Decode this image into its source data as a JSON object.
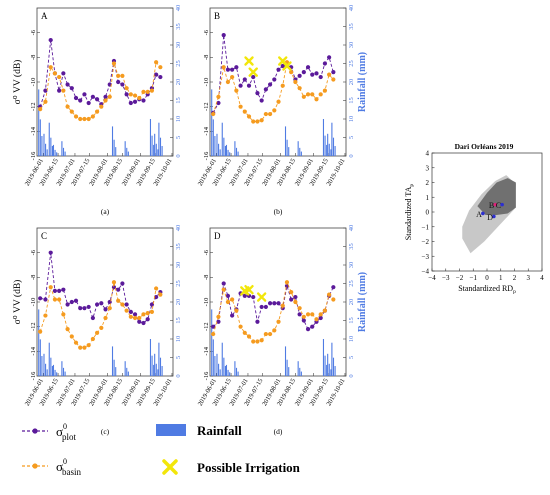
{
  "x_ticks": [
    "2019-06-01",
    "2019-06-15",
    "2019-07-01",
    "2019-07-15",
    "2019-08-01",
    "2019-08-15",
    "2019-09-01",
    "2019-09-15",
    "2019-10-01"
  ],
  "y_left_ticks": [
    "-16",
    "-14",
    "-12",
    "-10",
    "-8",
    "-6"
  ],
  "y_right_ticks": [
    "0",
    "5",
    "10",
    "15",
    "20",
    "25",
    "30",
    "35",
    "40"
  ],
  "y_left_label": "σ⁰ VV (dB)",
  "y_right_label": "Rainfall (mm)",
  "colors": {
    "plot": "#5b1a9a",
    "basin": "#f59b1f",
    "rain": "#4f7be3",
    "irrigation": "#f2e60a",
    "axis_right": "#4f7be3"
  },
  "legend": {
    "plot_label": "σ",
    "plot_sup": "0",
    "plot_sub": "plot",
    "basin_label": "σ",
    "basin_sup": "0",
    "basin_sub": "basin",
    "rain_label": "Rainfall",
    "irrig_label": "Possible Irrigation"
  },
  "chart_data": [
    {
      "type": "line",
      "panel": "A",
      "caption": "(a)",
      "x": [
        "2019-05-29",
        "2019-06-03",
        "2019-06-08",
        "2019-06-12",
        "2019-06-16",
        "2019-06-20",
        "2019-06-24",
        "2019-06-28",
        "2019-07-02",
        "2019-07-06",
        "2019-07-10",
        "2019-07-14",
        "2019-07-18",
        "2019-07-22",
        "2019-07-26",
        "2019-07-30",
        "2019-08-03",
        "2019-08-07",
        "2019-08-11",
        "2019-08-15",
        "2019-08-19",
        "2019-08-23",
        "2019-08-27",
        "2019-08-31",
        "2019-09-04",
        "2019-09-08",
        "2019-09-12",
        "2019-09-16",
        "2019-09-20"
      ],
      "series": [
        {
          "name": "plot",
          "values": [
            -12.0,
            -10.7,
            -6.6,
            -9.3,
            -10.7,
            -9.3,
            -10.2,
            -10.5,
            -11.3,
            -11.5,
            -11.0,
            -11.7,
            -11.2,
            -11.4,
            -11.8,
            -11.2,
            -10.2,
            -8.3,
            -10.0,
            -10.2,
            -11.0,
            -11.7,
            -11.6,
            -11.4,
            -11.5,
            -11.0,
            -10.5,
            -9.4,
            -9.6
          ]
        },
        {
          "name": "basin",
          "values": [
            -12.2,
            -11.6,
            -8.8,
            -9.3,
            -9.6,
            -10.7,
            -12.0,
            -12.4,
            -12.8,
            -13.0,
            -13.0,
            -13.0,
            -12.8,
            -12.4,
            -12.0,
            -11.5,
            -11.2,
            -8.5,
            -9.5,
            -9.5,
            -10.5,
            -11.0,
            -11.1,
            -11.3,
            -10.8,
            -10.8,
            -10.7,
            -8.4,
            -8.8
          ]
        },
        {
          "name": "rainfall",
          "values": [
            18,
            6,
            9,
            3,
            0,
            4,
            0,
            0,
            0,
            0,
            0,
            0,
            0,
            0,
            0,
            0,
            0,
            8,
            0,
            0,
            4,
            0,
            0,
            0,
            0,
            0,
            10,
            6,
            9
          ]
        }
      ],
      "irrigation_x": [],
      "irrigation_y": [],
      "ylim_left": [
        -16,
        -4
      ],
      "ylim_right": [
        0,
        40
      ]
    },
    {
      "type": "line",
      "panel": "B",
      "caption": "(b)",
      "x": [
        "2019-05-29",
        "2019-06-03",
        "2019-06-08",
        "2019-06-12",
        "2019-06-16",
        "2019-06-20",
        "2019-06-24",
        "2019-06-28",
        "2019-07-02",
        "2019-07-06",
        "2019-07-10",
        "2019-07-14",
        "2019-07-18",
        "2019-07-22",
        "2019-07-26",
        "2019-07-30",
        "2019-08-03",
        "2019-08-07",
        "2019-08-11",
        "2019-08-15",
        "2019-08-19",
        "2019-08-23",
        "2019-08-27",
        "2019-08-31",
        "2019-09-04",
        "2019-09-08",
        "2019-09-12",
        "2019-09-16",
        "2019-09-20"
      ],
      "series": [
        {
          "name": "plot",
          "values": [
            -12.5,
            -11.7,
            -6.2,
            -9.0,
            -9.0,
            -8.8,
            -10.3,
            -9.8,
            -10.3,
            -9.6,
            -10.9,
            -11.5,
            -10.6,
            -10.2,
            -9.8,
            -9.0,
            -8.7,
            -8.6,
            -8.8,
            -9.8,
            -9.5,
            -9.2,
            -8.8,
            -9.4,
            -9.3,
            -9.6,
            -8.5,
            -8.0,
            -9.2
          ]
        },
        {
          "name": "basin",
          "values": [
            -12.6,
            -11.2,
            -8.8,
            -10.0,
            -9.6,
            -10.7,
            -12.0,
            -12.4,
            -12.8,
            -13.2,
            -13.2,
            -13.1,
            -12.6,
            -12.6,
            -12.3,
            -11.6,
            -10.3,
            -8.4,
            -9.2,
            -10.0,
            -10.5,
            -11.2,
            -11.0,
            -11.0,
            -11.4,
            -11.0,
            -10.7,
            -9.4,
            -9.8
          ]
        },
        {
          "name": "rainfall",
          "values": [
            18,
            6,
            9,
            3,
            0,
            4,
            0,
            0,
            0,
            0,
            0,
            0,
            0,
            0,
            0,
            0,
            0,
            8,
            0,
            0,
            4,
            0,
            0,
            0,
            0,
            0,
            10,
            6,
            9
          ]
        }
      ],
      "irrigation_x": [
        "2019-07-02",
        "2019-07-06",
        "2019-08-03",
        "2019-08-07"
      ],
      "irrigation_y": [
        -8.3,
        -9.2,
        -8.3,
        -8.7
      ],
      "ylim_left": [
        -16,
        -4
      ],
      "ylim_right": [
        0,
        40
      ]
    },
    {
      "type": "line",
      "panel": "C",
      "caption": "(c)",
      "x": [
        "2019-05-29",
        "2019-06-03",
        "2019-06-08",
        "2019-06-12",
        "2019-06-16",
        "2019-06-20",
        "2019-06-24",
        "2019-06-28",
        "2019-07-02",
        "2019-07-06",
        "2019-07-10",
        "2019-07-14",
        "2019-07-18",
        "2019-07-22",
        "2019-07-26",
        "2019-07-30",
        "2019-08-03",
        "2019-08-07",
        "2019-08-11",
        "2019-08-15",
        "2019-08-19",
        "2019-08-23",
        "2019-08-27",
        "2019-08-31",
        "2019-09-04",
        "2019-09-08",
        "2019-09-12",
        "2019-09-16",
        "2019-09-20"
      ],
      "series": [
        {
          "name": "plot",
          "values": [
            -9.7,
            -9.8,
            -6.0,
            -9.1,
            -9.1,
            -9.0,
            -10.2,
            -10.0,
            -9.9,
            -10.5,
            -10.5,
            -10.4,
            -11.3,
            -10.2,
            -10.1,
            -10.6,
            -10.0,
            -8.8,
            -9.0,
            -8.5,
            -10.2,
            -10.8,
            -11.0,
            -11.6,
            -11.7,
            -11.4,
            -10.2,
            -9.6,
            -9.2
          ]
        },
        {
          "name": "basin",
          "values": [
            -12.4,
            -11.1,
            -8.8,
            -9.8,
            -9.8,
            -11.0,
            -12.2,
            -12.8,
            -13.3,
            -13.7,
            -13.7,
            -13.5,
            -13.0,
            -12.5,
            -12.1,
            -11.3,
            -10.5,
            -8.4,
            -9.9,
            -10.2,
            -10.7,
            -11.2,
            -11.3,
            -11.3,
            -11.0,
            -10.9,
            -10.8,
            -8.9,
            -9.4
          ]
        },
        {
          "name": "rainfall",
          "values": [
            18,
            6,
            9,
            3,
            0,
            4,
            0,
            0,
            0,
            0,
            0,
            0,
            0,
            0,
            0,
            0,
            0,
            8,
            0,
            0,
            4,
            0,
            0,
            0,
            0,
            0,
            10,
            6,
            9
          ]
        }
      ],
      "irrigation_x": [],
      "irrigation_y": [],
      "ylim_left": [
        -16,
        -4
      ],
      "ylim_right": [
        0,
        40
      ]
    },
    {
      "type": "line",
      "panel": "D",
      "caption": "(d)",
      "x": [
        "2019-05-29",
        "2019-06-03",
        "2019-06-08",
        "2019-06-12",
        "2019-06-16",
        "2019-06-20",
        "2019-06-24",
        "2019-06-28",
        "2019-07-02",
        "2019-07-06",
        "2019-07-10",
        "2019-07-14",
        "2019-07-18",
        "2019-07-22",
        "2019-07-26",
        "2019-07-30",
        "2019-08-03",
        "2019-08-07",
        "2019-08-11",
        "2019-08-15",
        "2019-08-19",
        "2019-08-23",
        "2019-08-27",
        "2019-08-31",
        "2019-09-04",
        "2019-09-08",
        "2019-09-12",
        "2019-09-16",
        "2019-09-20"
      ],
      "series": [
        {
          "name": "plot",
          "values": [
            -12.0,
            -11.6,
            -8.5,
            -9.5,
            -11.1,
            -10.6,
            -9.3,
            -9.5,
            -9.5,
            -9.6,
            -11.6,
            -10.4,
            -10.4,
            -10.1,
            -10.1,
            -10.1,
            -10.5,
            -8.7,
            -9.8,
            -9.6,
            -11.0,
            -11.5,
            -12.2,
            -12.0,
            -11.6,
            -11.3,
            -10.7,
            -9.5,
            -8.8
          ]
        },
        {
          "name": "basin",
          "values": [
            -12.6,
            -11.2,
            -9.0,
            -10.0,
            -9.8,
            -10.7,
            -12.0,
            -12.5,
            -12.8,
            -13.2,
            -13.2,
            -13.1,
            -12.6,
            -12.6,
            -12.3,
            -11.6,
            -10.3,
            -8.4,
            -9.2,
            -10.0,
            -10.5,
            -11.2,
            -11.0,
            -11.0,
            -11.4,
            -11.0,
            -10.7,
            -9.4,
            -9.8
          ]
        },
        {
          "name": "rainfall",
          "values": [
            18,
            6,
            9,
            3,
            0,
            4,
            0,
            0,
            0,
            0,
            0,
            0,
            0,
            0,
            0,
            0,
            0,
            8,
            0,
            0,
            4,
            0,
            0,
            0,
            0,
            0,
            10,
            6,
            9
          ]
        }
      ],
      "irrigation_x": [
        "2019-06-28",
        "2019-07-02",
        "2019-07-14"
      ],
      "irrigation_y": [
        -9.1,
        -9.0,
        -9.6
      ],
      "ylim_left": [
        -16,
        -4
      ],
      "ylim_right": [
        0,
        40
      ]
    },
    {
      "type": "scatter",
      "panel": "scatter",
      "title": "Dari Orléans 2019",
      "xlabel": "Standardized RD",
      "xlabel_sub": "p",
      "ylabel": "Standardized TA",
      "ylabel_sub": "p",
      "x_ticks": [
        "−4",
        "−3",
        "−2",
        "−1",
        "0",
        "1",
        "2",
        "3",
        "4"
      ],
      "y_ticks": [
        "−4",
        "−3",
        "−2",
        "−1",
        "0",
        "1",
        "2",
        "3",
        "4"
      ],
      "xlim": [
        -4,
        4
      ],
      "ylim": [
        -4,
        4
      ],
      "points": [
        {
          "label": "A",
          "x": -0.3,
          "y": -0.1
        },
        {
          "label": "B",
          "x": 0.6,
          "y": 0.5
        },
        {
          "label": "C",
          "x": 1.1,
          "y": 0.5
        },
        {
          "label": "D",
          "x": 0.5,
          "y": -0.3
        }
      ]
    }
  ]
}
